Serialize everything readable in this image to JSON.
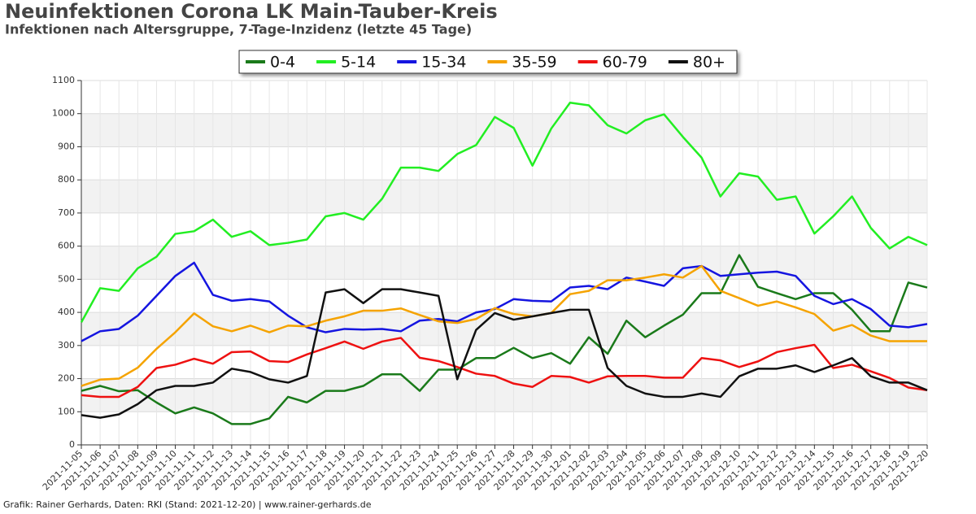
{
  "chart_data": {
    "type": "line",
    "title": "Neuinfektionen Corona LK Main-Tauber-Kreis",
    "subtitle": "Infektionen nach Altersgruppe, 7-Tage-Inzidenz (letzte 45 Tage)",
    "caption": "Grafik: Rainer Gerhards, Daten: RKI (Stand: 2021-12-20) | www.rainer-gerhards.de",
    "categories": [
      "2021-11-05",
      "2021-11-06",
      "2021-11-07",
      "2021-11-08",
      "2021-11-09",
      "2021-11-10",
      "2021-11-11",
      "2021-11-12",
      "2021-11-13",
      "2021-11-14",
      "2021-11-15",
      "2021-11-16",
      "2021-11-17",
      "2021-11-18",
      "2021-11-19",
      "2021-11-20",
      "2021-11-21",
      "2021-11-22",
      "2021-11-23",
      "2021-11-24",
      "2021-11-25",
      "2021-11-26",
      "2021-11-27",
      "2021-11-28",
      "2021-11-29",
      "2021-11-30",
      "2021-12-01",
      "2021-12-02",
      "2021-12-03",
      "2021-12-04",
      "2021-12-05",
      "2021-12-06",
      "2021-12-07",
      "2021-12-08",
      "2021-12-09",
      "2021-12-10",
      "2021-12-11",
      "2021-12-12",
      "2021-12-13",
      "2021-12-14",
      "2021-12-15",
      "2021-12-16",
      "2021-12-17",
      "2021-12-18",
      "2021-12-19",
      "2021-12-20"
    ],
    "series": [
      {
        "name": "0-4",
        "color": "#1a7a1a",
        "values": [
          163,
          178,
          162,
          165,
          128,
          95,
          113,
          95,
          63,
          63,
          80,
          145,
          128,
          163,
          163,
          178,
          213,
          213,
          163,
          227,
          227,
          262,
          262,
          293,
          262,
          277,
          245,
          325,
          275,
          375,
          325,
          360,
          393,
          458,
          458,
          573,
          477,
          458,
          440,
          458,
          458,
          408,
          343,
          343,
          490,
          475
        ]
      },
      {
        "name": "5-14",
        "color": "#22ee22",
        "values": [
          370,
          473,
          465,
          533,
          568,
          637,
          645,
          680,
          628,
          645,
          603,
          610,
          620,
          690,
          700,
          680,
          743,
          837,
          837,
          827,
          878,
          905,
          990,
          957,
          843,
          955,
          1033,
          1025,
          965,
          940,
          980,
          998,
          930,
          867,
          750,
          820,
          810,
          740,
          750,
          638,
          690,
          750,
          655,
          593,
          628,
          603
        ]
      },
      {
        "name": "15-34",
        "color": "#1515e0",
        "values": [
          313,
          343,
          350,
          390,
          450,
          510,
          550,
          453,
          435,
          440,
          433,
          390,
          355,
          340,
          350,
          348,
          350,
          343,
          375,
          380,
          373,
          400,
          410,
          440,
          435,
          433,
          475,
          480,
          470,
          505,
          493,
          480,
          533,
          540,
          510,
          515,
          520,
          523,
          510,
          450,
          425,
          440,
          410,
          360,
          355,
          365
        ]
      },
      {
        "name": "35-59",
        "color": "#f5a300",
        "values": [
          178,
          197,
          200,
          233,
          290,
          340,
          397,
          358,
          343,
          360,
          340,
          360,
          358,
          375,
          388,
          405,
          405,
          412,
          392,
          373,
          368,
          380,
          413,
          395,
          388,
          398,
          455,
          465,
          497,
          497,
          505,
          515,
          505,
          540,
          465,
          443,
          420,
          433,
          415,
          395,
          345,
          362,
          330,
          313,
          313,
          313
        ]
      },
      {
        "name": "60-79",
        "color": "#ee1111",
        "values": [
          150,
          145,
          145,
          175,
          232,
          242,
          260,
          245,
          280,
          282,
          253,
          250,
          273,
          292,
          312,
          290,
          312,
          323,
          263,
          253,
          235,
          215,
          208,
          185,
          175,
          208,
          205,
          188,
          207,
          208,
          208,
          203,
          203,
          262,
          255,
          235,
          252,
          280,
          292,
          302,
          232,
          242,
          222,
          202,
          173,
          165
        ]
      },
      {
        "name": "80+",
        "color": "#111111",
        "values": [
          90,
          82,
          92,
          123,
          165,
          178,
          178,
          188,
          230,
          220,
          198,
          188,
          208,
          460,
          470,
          428,
          470,
          470,
          460,
          450,
          198,
          347,
          398,
          378,
          388,
          398,
          408,
          408,
          232,
          178,
          155,
          145,
          145,
          155,
          145,
          207,
          230,
          230,
          240,
          220,
          240,
          262,
          207,
          188,
          188,
          165
        ]
      }
    ],
    "ylim": [
      0,
      1100
    ],
    "yticks": [
      0,
      100,
      200,
      300,
      400,
      500,
      600,
      700,
      800,
      900,
      1000,
      1100
    ],
    "grid": true,
    "legend": "top"
  }
}
